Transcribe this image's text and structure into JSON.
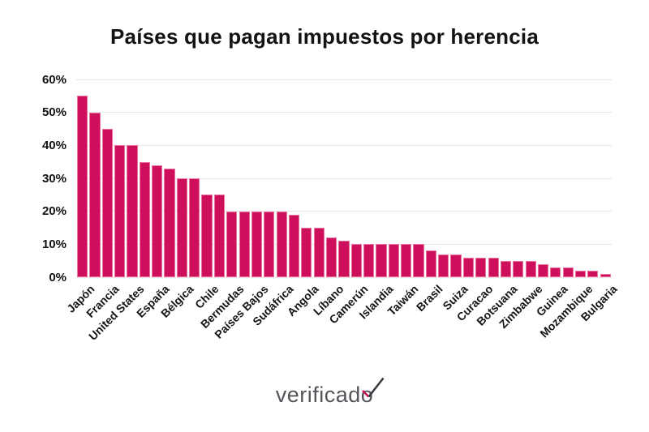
{
  "title": "Países que pagan impuestos por herencia",
  "logo": {
    "text": "verificado",
    "text_head": "verificad",
    "text_tail": "o"
  },
  "colors": {
    "bar": "#ce105c",
    "bar_edge": "#e8739f",
    "grid": "#e7e7e7",
    "text": "#131313",
    "logo_gray": "#55565b",
    "check_dark": "#3a3b40",
    "check_pink": "#ce105c"
  },
  "chart_data": {
    "type": "bar",
    "title": "Países que pagan impuestos por herencia",
    "xlabel": "",
    "ylabel": "",
    "ylim": [
      0,
      60
    ],
    "grid": true,
    "legend": "none",
    "yticks": [
      {
        "value": 0,
        "label": "0%"
      },
      {
        "value": 10,
        "label": "10%"
      },
      {
        "value": 20,
        "label": "20%"
      },
      {
        "value": 30,
        "label": "30%"
      },
      {
        "value": 40,
        "label": "40%"
      },
      {
        "value": 50,
        "label": "50%"
      },
      {
        "value": 60,
        "label": "60%"
      }
    ],
    "bars": [
      {
        "label": "Japón",
        "value": 55
      },
      {
        "label": "",
        "value": 50
      },
      {
        "label": "Francia",
        "value": 45
      },
      {
        "label": "",
        "value": 40
      },
      {
        "label": "United States",
        "value": 40
      },
      {
        "label": "",
        "value": 35
      },
      {
        "label": "España",
        "value": 34
      },
      {
        "label": "",
        "value": 33
      },
      {
        "label": "Bélgica",
        "value": 30
      },
      {
        "label": "",
        "value": 30
      },
      {
        "label": "Chile",
        "value": 25
      },
      {
        "label": "",
        "value": 25
      },
      {
        "label": "Bermudas",
        "value": 20
      },
      {
        "label": "",
        "value": 20
      },
      {
        "label": "Países Bajos",
        "value": 20
      },
      {
        "label": "",
        "value": 20
      },
      {
        "label": "Sudáfrica",
        "value": 20
      },
      {
        "label": "",
        "value": 19
      },
      {
        "label": "Angola",
        "value": 15
      },
      {
        "label": "",
        "value": 15
      },
      {
        "label": "Líbano",
        "value": 12
      },
      {
        "label": "",
        "value": 11
      },
      {
        "label": "Camerún",
        "value": 10
      },
      {
        "label": "",
        "value": 10
      },
      {
        "label": "Islandia",
        "value": 10
      },
      {
        "label": "",
        "value": 10
      },
      {
        "label": "Taiwán",
        "value": 10
      },
      {
        "label": "",
        "value": 10
      },
      {
        "label": "Brasil",
        "value": 8
      },
      {
        "label": "",
        "value": 7
      },
      {
        "label": "Suiza",
        "value": 7
      },
      {
        "label": "",
        "value": 6
      },
      {
        "label": "Curacao",
        "value": 6
      },
      {
        "label": "",
        "value": 6
      },
      {
        "label": "Botsuana",
        "value": 5
      },
      {
        "label": "",
        "value": 5
      },
      {
        "label": "Zimbabwe",
        "value": 5
      },
      {
        "label": "",
        "value": 4
      },
      {
        "label": "Guinea",
        "value": 3
      },
      {
        "label": "",
        "value": 3
      },
      {
        "label": "Mozambique",
        "value": 2
      },
      {
        "label": "",
        "value": 2
      },
      {
        "label": "Bulgaria",
        "value": 1
      }
    ]
  }
}
